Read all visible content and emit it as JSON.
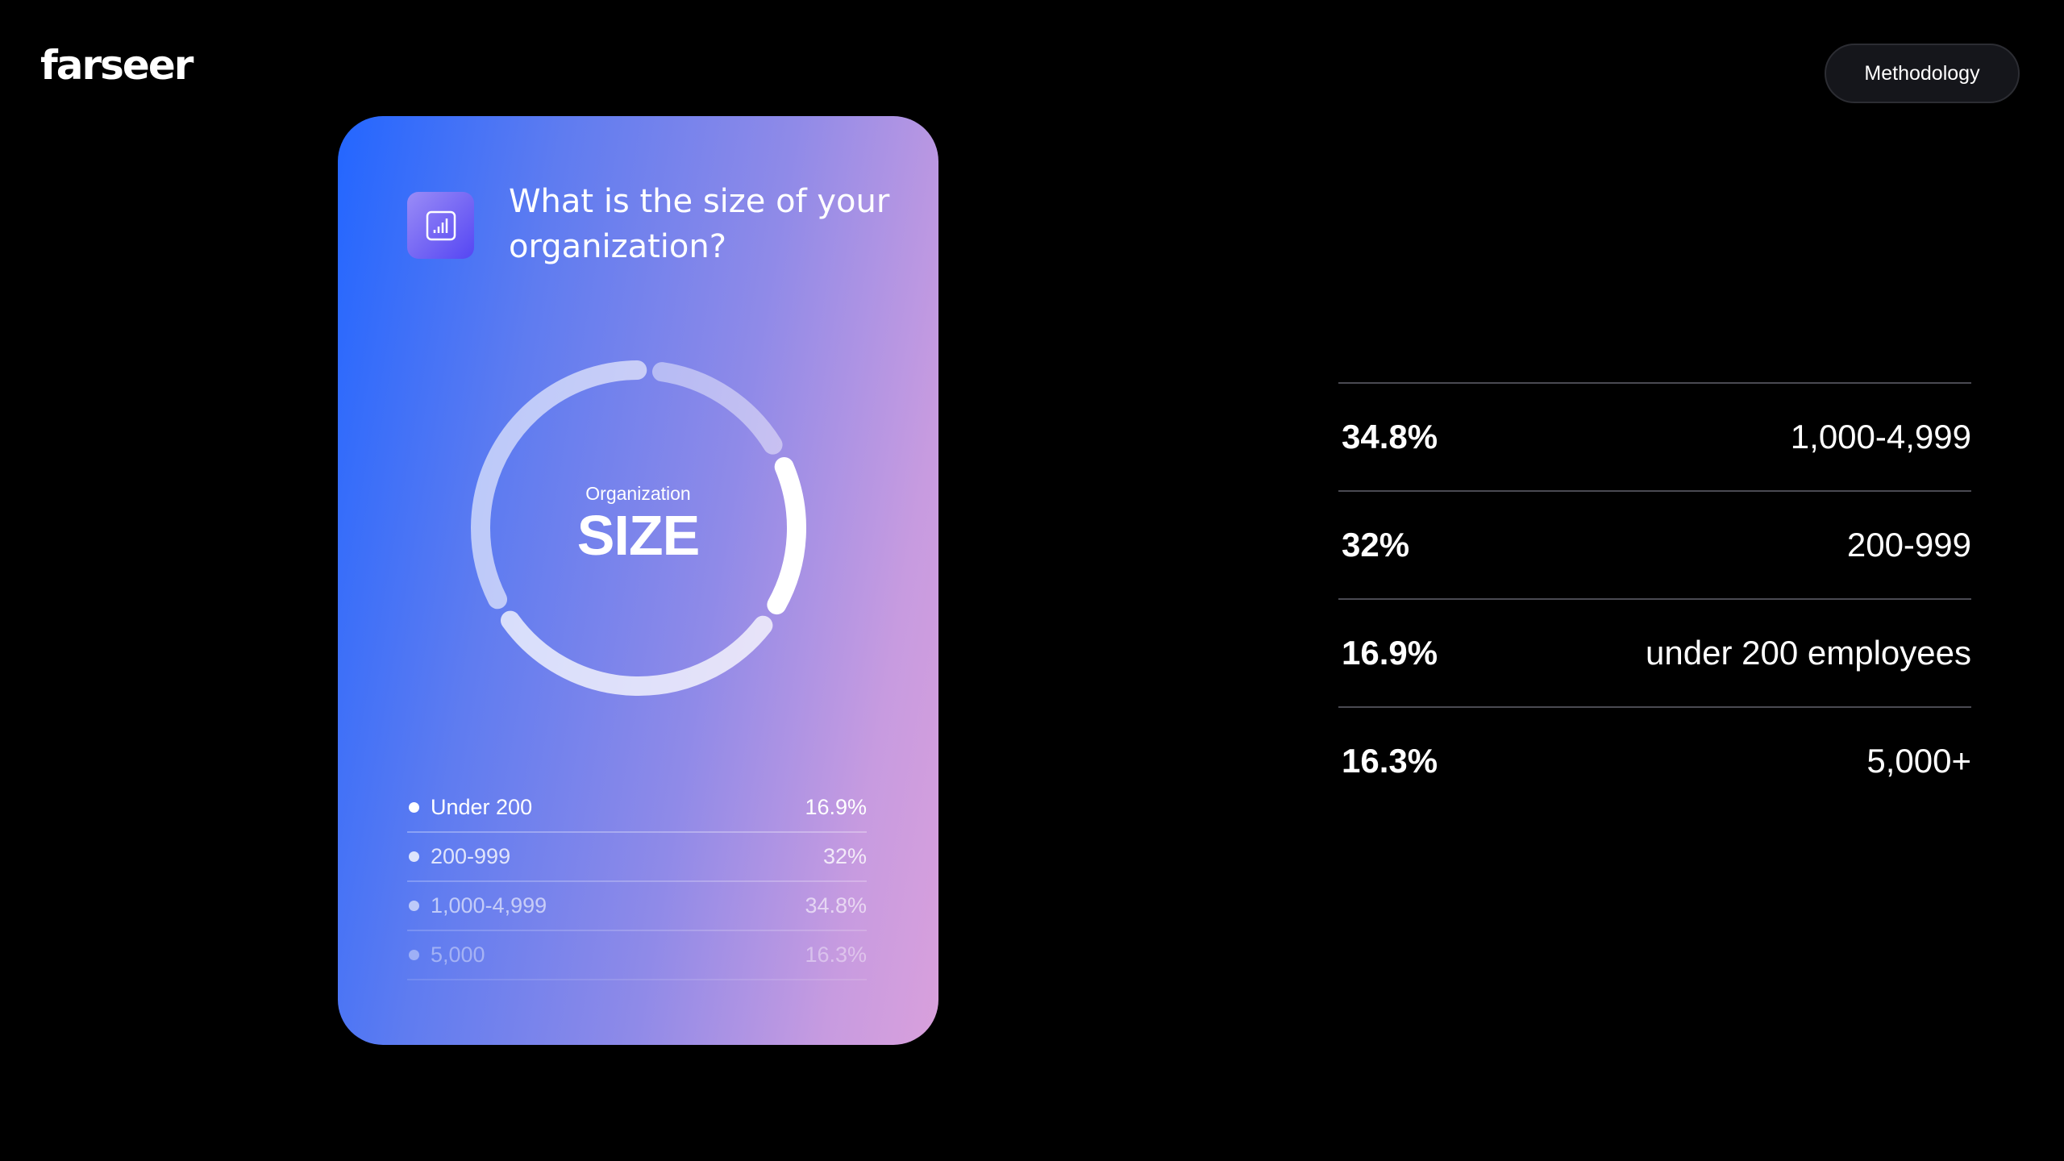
{
  "header": {
    "logo": "farseer",
    "methodology_label": "Methodology"
  },
  "card": {
    "question": "What is the size of your organization?",
    "icon": "bar-chart-icon",
    "center_label": "Organization",
    "center_title": "SIZE",
    "legend": [
      {
        "label": "Under 200",
        "value": "16.9%",
        "opacity": 1
      },
      {
        "label": "200-999",
        "value": "32%",
        "opacity": 0.8
      },
      {
        "label": "1,000-4,999",
        "value": "34.8%",
        "opacity": 0.6
      },
      {
        "label": "5,000",
        "value": "16.3%",
        "opacity": 0.4
      }
    ]
  },
  "chart_data": {
    "type": "pie",
    "categories": [
      "5,000",
      "Under 200",
      "200-999",
      "1,000-4,999"
    ],
    "values": [
      16.3,
      16.9,
      32,
      34.8
    ]
  },
  "table": [
    {
      "pct": "34.8%",
      "label": "1,000-4,999"
    },
    {
      "pct": "32%",
      "label": "200-999"
    },
    {
      "pct": "16.9%",
      "label": "under 200 employees"
    },
    {
      "pct": "16.3%",
      "label": "5,000+"
    }
  ],
  "colors": {
    "background": "#000000",
    "card_start": "#2366ff",
    "card_end": "#d9a0dc"
  }
}
